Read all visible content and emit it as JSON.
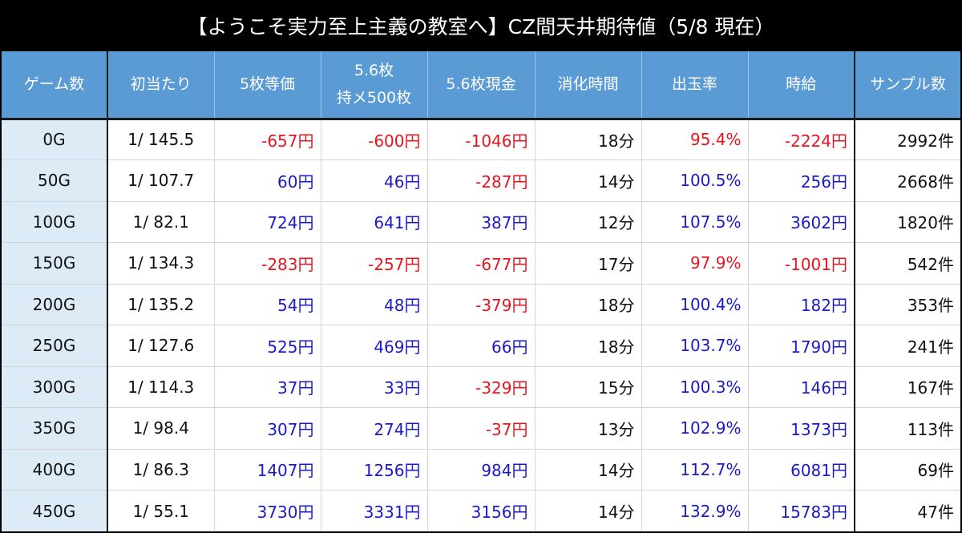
{
  "title": "【ようこそ実力至上主義の教室へ】CZ間天井期待値（5/8 現在）",
  "colors": {
    "header_bg": "#5b9bd5",
    "first_col_bg": "#ddebf7",
    "negative": "#e8141e",
    "positive": "#1a1ac8"
  },
  "table": {
    "headers": [
      {
        "line1": "ゲーム数",
        "line2": ""
      },
      {
        "line1": "初当たり",
        "line2": ""
      },
      {
        "line1": "5枚等価",
        "line2": ""
      },
      {
        "line1": "5.6枚",
        "line2": "持メ500枚"
      },
      {
        "line1": "5.6枚現金",
        "line2": ""
      },
      {
        "line1": "消化時間",
        "line2": ""
      },
      {
        "line1": "出玉率",
        "line2": ""
      },
      {
        "line1": "時給",
        "line2": ""
      },
      {
        "line1": "サンプル数",
        "line2": ""
      }
    ],
    "rows": [
      {
        "game": "0G",
        "hit": "1/ 145.5",
        "eq5": "-657円",
        "m56": "-600円",
        "c56": "-1046円",
        "time": "18分",
        "rate": "95.4%",
        "hourly": "-2224円",
        "samples": "2992件",
        "eq5_s": "neg",
        "m56_s": "neg",
        "c56_s": "neg",
        "rate_s": "neg",
        "hourly_s": "neg"
      },
      {
        "game": "50G",
        "hit": "1/ 107.7",
        "eq5": "60円",
        "m56": "46円",
        "c56": "-287円",
        "time": "14分",
        "rate": "100.5%",
        "hourly": "256円",
        "samples": "2668件",
        "eq5_s": "pos",
        "m56_s": "pos",
        "c56_s": "neg",
        "rate_s": "pos",
        "hourly_s": "pos"
      },
      {
        "game": "100G",
        "hit": "1/ 82.1",
        "eq5": "724円",
        "m56": "641円",
        "c56": "387円",
        "time": "12分",
        "rate": "107.5%",
        "hourly": "3602円",
        "samples": "1820件",
        "eq5_s": "pos",
        "m56_s": "pos",
        "c56_s": "pos",
        "rate_s": "pos",
        "hourly_s": "pos"
      },
      {
        "game": "150G",
        "hit": "1/ 134.3",
        "eq5": "-283円",
        "m56": "-257円",
        "c56": "-677円",
        "time": "17分",
        "rate": "97.9%",
        "hourly": "-1001円",
        "samples": "542件",
        "eq5_s": "neg",
        "m56_s": "neg",
        "c56_s": "neg",
        "rate_s": "neg",
        "hourly_s": "neg"
      },
      {
        "game": "200G",
        "hit": "1/ 135.2",
        "eq5": "54円",
        "m56": "48円",
        "c56": "-379円",
        "time": "18分",
        "rate": "100.4%",
        "hourly": "182円",
        "samples": "353件",
        "eq5_s": "pos",
        "m56_s": "pos",
        "c56_s": "neg",
        "rate_s": "pos",
        "hourly_s": "pos"
      },
      {
        "game": "250G",
        "hit": "1/ 127.6",
        "eq5": "525円",
        "m56": "469円",
        "c56": "66円",
        "time": "18分",
        "rate": "103.7%",
        "hourly": "1790円",
        "samples": "241件",
        "eq5_s": "pos",
        "m56_s": "pos",
        "c56_s": "pos",
        "rate_s": "pos",
        "hourly_s": "pos"
      },
      {
        "game": "300G",
        "hit": "1/ 114.3",
        "eq5": "37円",
        "m56": "33円",
        "c56": "-329円",
        "time": "15分",
        "rate": "100.3%",
        "hourly": "146円",
        "samples": "167件",
        "eq5_s": "pos",
        "m56_s": "pos",
        "c56_s": "neg",
        "rate_s": "pos",
        "hourly_s": "pos"
      },
      {
        "game": "350G",
        "hit": "1/ 98.4",
        "eq5": "307円",
        "m56": "274円",
        "c56": "-37円",
        "time": "13分",
        "rate": "102.9%",
        "hourly": "1373円",
        "samples": "113件",
        "eq5_s": "pos",
        "m56_s": "pos",
        "c56_s": "neg",
        "rate_s": "pos",
        "hourly_s": "pos"
      },
      {
        "game": "400G",
        "hit": "1/ 86.3",
        "eq5": "1407円",
        "m56": "1256円",
        "c56": "984円",
        "time": "14分",
        "rate": "112.7%",
        "hourly": "6081円",
        "samples": "69件",
        "eq5_s": "pos",
        "m56_s": "pos",
        "c56_s": "pos",
        "rate_s": "pos",
        "hourly_s": "pos"
      },
      {
        "game": "450G",
        "hit": "1/ 55.1",
        "eq5": "3730円",
        "m56": "3331円",
        "c56": "3156円",
        "time": "14分",
        "rate": "132.9%",
        "hourly": "15783円",
        "samples": "47件",
        "eq5_s": "pos",
        "m56_s": "pos",
        "c56_s": "pos",
        "rate_s": "pos",
        "hourly_s": "pos"
      }
    ]
  }
}
